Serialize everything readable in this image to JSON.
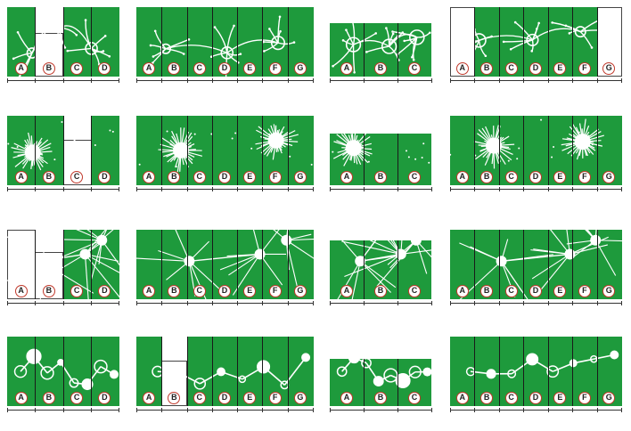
{
  "colors": {
    "panel": "#1e9a3c",
    "art": "#ffffff",
    "marker_ring": "#c0392b"
  },
  "rows": [
    {
      "sheets": [
        {
          "letters": [
            "A",
            "B",
            "C",
            "D"
          ],
          "motif": "neuron"
        },
        {
          "letters": [
            "A",
            "B",
            "C",
            "D",
            "E",
            "F",
            "G"
          ],
          "motif": "neuron"
        },
        {
          "letters": [
            "A",
            "B",
            "C"
          ],
          "motif": "neuron"
        },
        {
          "letters": [
            "A",
            "B",
            "C",
            "D",
            "E",
            "F",
            "G"
          ],
          "motif": "neuron"
        }
      ]
    },
    {
      "sheets": [
        {
          "letters": [
            "A",
            "B",
            "C",
            "D"
          ],
          "motif": "burst"
        },
        {
          "letters": [
            "A",
            "B",
            "C",
            "D",
            "E",
            "F",
            "G"
          ],
          "motif": "burst"
        },
        {
          "letters": [
            "A",
            "B",
            "C"
          ],
          "motif": "burst"
        },
        {
          "letters": [
            "A",
            "B",
            "C",
            "D",
            "E",
            "F",
            "G"
          ],
          "motif": "burst"
        }
      ]
    },
    {
      "sheets": [
        {
          "letters": [
            "A",
            "B",
            "C",
            "D"
          ],
          "motif": "star"
        },
        {
          "letters": [
            "A",
            "B",
            "C",
            "D",
            "E",
            "F",
            "G"
          ],
          "motif": "star"
        },
        {
          "letters": [
            "A",
            "B",
            "C"
          ],
          "motif": "star"
        },
        {
          "letters": [
            "A",
            "B",
            "C",
            "D",
            "E",
            "F",
            "G"
          ],
          "motif": "star"
        }
      ]
    },
    {
      "sheets": [
        {
          "letters": [
            "A",
            "B",
            "C",
            "D"
          ],
          "motif": "molecule"
        },
        {
          "letters": [
            "A",
            "B",
            "C",
            "D",
            "E",
            "F",
            "G"
          ],
          "motif": "molecule"
        },
        {
          "letters": [
            "A",
            "B",
            "C"
          ],
          "motif": "molecule"
        },
        {
          "letters": [
            "A",
            "B",
            "C",
            "D",
            "E",
            "F",
            "G"
          ],
          "motif": "molecule"
        }
      ]
    }
  ]
}
